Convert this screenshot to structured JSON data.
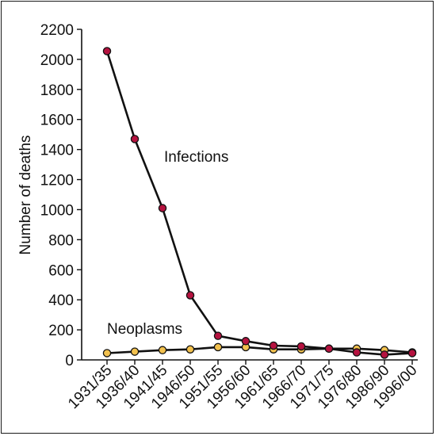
{
  "chart_data": {
    "type": "line",
    "title": "",
    "xlabel": "",
    "ylabel": "Number of deaths",
    "ylim": [
      0,
      2200
    ],
    "yticks": [
      0,
      200,
      400,
      600,
      800,
      1000,
      1200,
      1400,
      1600,
      1800,
      2000,
      2200
    ],
    "grid": false,
    "categories": [
      "1931/35",
      "1936/40",
      "1941/45",
      "1946/50",
      "1951/55",
      "1956/60",
      "1961/65",
      "1966/70",
      "1971/75",
      "1976/80",
      "1986/90",
      "1996/00"
    ],
    "series": [
      {
        "name": "Infections",
        "color": "#b5123f",
        "values": [
          2055,
          1470,
          1010,
          430,
          160,
          125,
          95,
          90,
          75,
          50,
          35,
          45
        ]
      },
      {
        "name": "Neoplasms",
        "color": "#f2c14e",
        "values": [
          45,
          55,
          65,
          70,
          85,
          85,
          70,
          70,
          75,
          75,
          65,
          50
        ]
      }
    ]
  }
}
